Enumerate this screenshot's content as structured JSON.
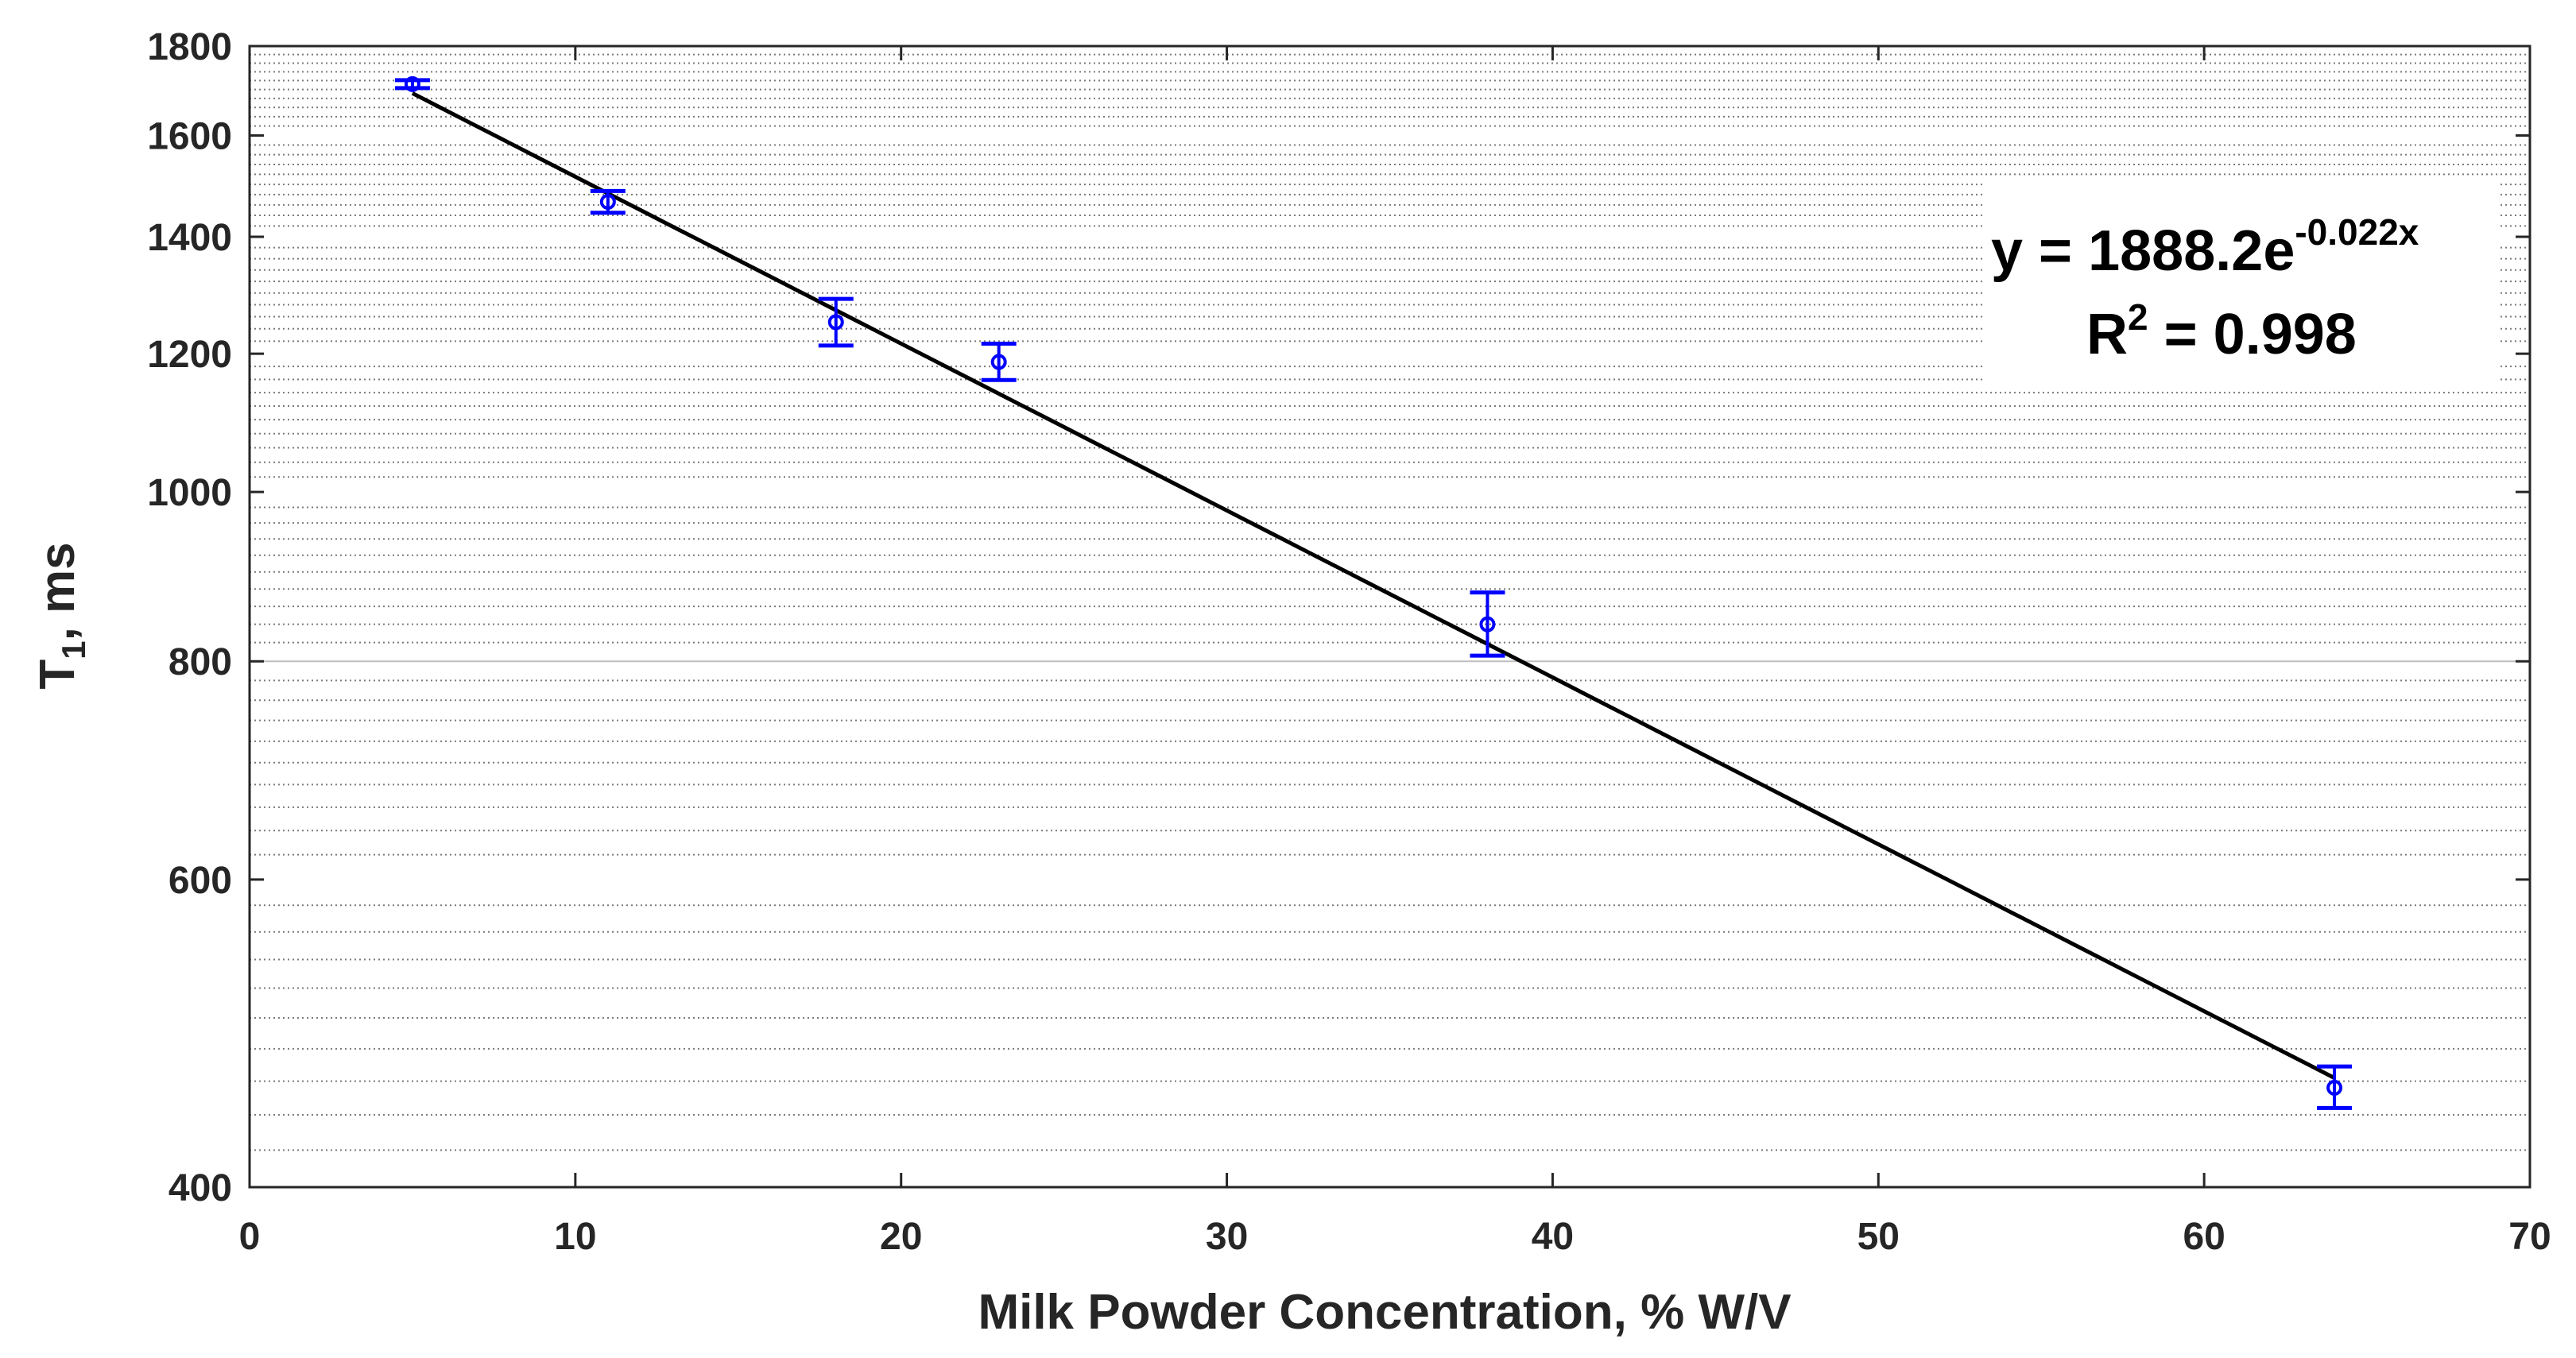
{
  "chart_data": {
    "type": "scatter",
    "xlabel": "Milk Powder Concentration, % W/V",
    "ylabel_main": "T",
    "ylabel_sub": "1",
    "ylabel_rest": ", ms",
    "xlim": [
      0,
      70
    ],
    "ylim": [
      400,
      1800
    ],
    "yscale": "log",
    "xticks": [
      0,
      10,
      20,
      30,
      40,
      50,
      60,
      70
    ],
    "yticks": [
      400,
      600,
      800,
      1000,
      1200,
      1400,
      1600,
      1800
    ],
    "xtick_labels": [
      "0",
      "10",
      "20",
      "30",
      "40",
      "50",
      "60",
      "70"
    ],
    "ytick_labels": [
      "400",
      "600",
      "800",
      "1000",
      "1200",
      "1400",
      "1600",
      "1800"
    ],
    "grid": "dotted horizontal minor lines",
    "series": [
      {
        "points": [
          {
            "x": 5,
            "y": 1712,
            "err_low": 1703,
            "err_high": 1721
          },
          {
            "x": 11,
            "y": 1466,
            "err_low": 1445,
            "err_high": 1487
          },
          {
            "x": 18,
            "y": 1251,
            "err_low": 1213,
            "err_high": 1290
          },
          {
            "x": 23,
            "y": 1187,
            "err_low": 1159,
            "err_high": 1216
          },
          {
            "x": 38,
            "y": 840,
            "err_low": 806,
            "err_high": 876
          },
          {
            "x": 64,
            "y": 456,
            "err_low": 444,
            "err_high": 469
          }
        ],
        "color": "#0000ff"
      }
    ],
    "fit": {
      "type": "exponential",
      "a": 1888.2,
      "b": -0.022,
      "x_range": [
        5,
        64
      ],
      "color": "#000000",
      "equation_prefix": "y = 1888.2e",
      "equation_exponent": "-0.022x",
      "r2_prefix": "R",
      "r2_sup": "2",
      "r2_value": " = 0.998"
    }
  }
}
